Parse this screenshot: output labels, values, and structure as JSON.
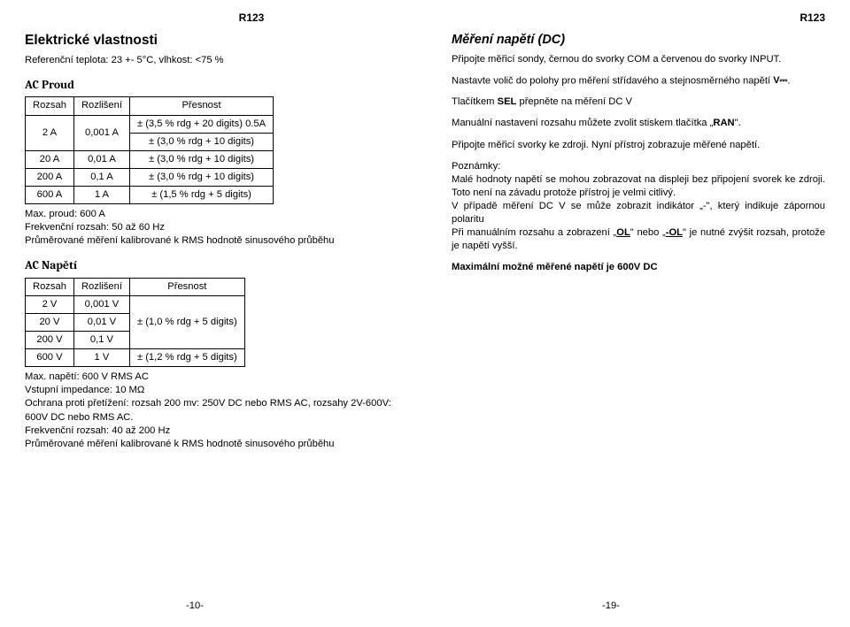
{
  "headers": {
    "left": "R123",
    "right": "R123"
  },
  "left": {
    "title": "Elektrické vlastnosti",
    "ref": "Referenční teplota: 23 +- 5°C, vlhkost: <75 %",
    "ac_current": {
      "section": "AC Proud",
      "head": {
        "c1": "Rozsah",
        "c2": "Rozlišení",
        "c3": "Přesnost"
      },
      "rows": [
        {
          "c1": "2 A",
          "c2": "0,001 A",
          "c3a": "± (3,5 % rdg + 20 digits) 0.5A",
          "c3b": "± (3,0 % rdg + 10 digits)"
        },
        {
          "c1": "20 A",
          "c2": "0,01 A",
          "c3": "± (3,0 % rdg + 10 digits)"
        },
        {
          "c1": "200 A",
          "c2": "0,1 A",
          "c3": "± (3,0 % rdg + 10 digits)"
        },
        {
          "c1": "600 A",
          "c2": "1 A",
          "c3": "± (1,5 % rdg + 5 digits)"
        }
      ],
      "notes": [
        "Max. proud: 600 A",
        "Frekvenční rozsah: 50 až 60 Hz",
        "Průměrované měření kalibrované k RMS hodnotě sinusového průběhu"
      ]
    },
    "ac_voltage": {
      "section": "AC Napětí",
      "head": {
        "c1": "Rozsah",
        "c2": "Rozlišení",
        "c3": "Přesnost"
      },
      "rows": [
        {
          "c1": "2 V",
          "c2": "0,001 V",
          "c3": ""
        },
        {
          "c1": "20 V",
          "c2": "0,01 V",
          "c3": "± (1,0 % rdg + 5 digits)"
        },
        {
          "c1": "200 V",
          "c2": "0,1 V",
          "c3": ""
        },
        {
          "c1": "600 V",
          "c2": "1 V",
          "c3": "± (1,2 % rdg + 5 digits)"
        }
      ],
      "notes": [
        "Max. napětí: 600 V RMS AC",
        "Vstupní impedance: 10 MΩ",
        "Ochrana proti přetížení: rozsah 200 mv: 250V DC nebo RMS AC, rozsahy 2V-600V: 600V DC nebo RMS AC.",
        "Frekvenční rozsah: 40 až 200 Hz",
        "Průměrované měření kalibrované k RMS hodnotě sinusového průběhu"
      ]
    }
  },
  "right": {
    "title": "Měření napětí (DC)",
    "p1": "Připojte měřicí sondy, černou do svorky COM a červenou do svorky INPUT.",
    "p2a": "Nastavte volič do polohy pro měření střídavého a stejnosměrného napětí ",
    "p2b": ".",
    "p3a": "Tlačítkem ",
    "p3b": "SEL",
    "p3c": " přepněte na měření DC V",
    "p4a": "Manuální nastavení rozsahu můžete zvolit stiskem tlačítka „",
    "p4b": "RAN",
    "p4c": "\".",
    "p5": "Připojte měřicí svorky ke zdroji. Nyní přístroj zobrazuje měřené napětí.",
    "p6": "Poznámky:",
    "p7": "Malé hodnoty napětí se mohou zobrazovat na displeji bez připojení svorek ke zdroji. Toto není na závadu protože přístroj je velmi citlivý.",
    "p8": "V případě měření DC V se může zobrazit indikátor „-\", který indikuje zápornou polaritu",
    "p9a": "Při manuálním rozsahu a zobrazení „",
    "p9b": "OL",
    "p9c": "\" nebo „",
    "p9d": "-OL",
    "p9e": "\" je nutné zvýšit rozsah, protože je napětí vyšší.",
    "p10": "Maximální možné měřené napětí je 600V DC"
  },
  "footers": {
    "left": "-10-",
    "right": "-19-"
  }
}
